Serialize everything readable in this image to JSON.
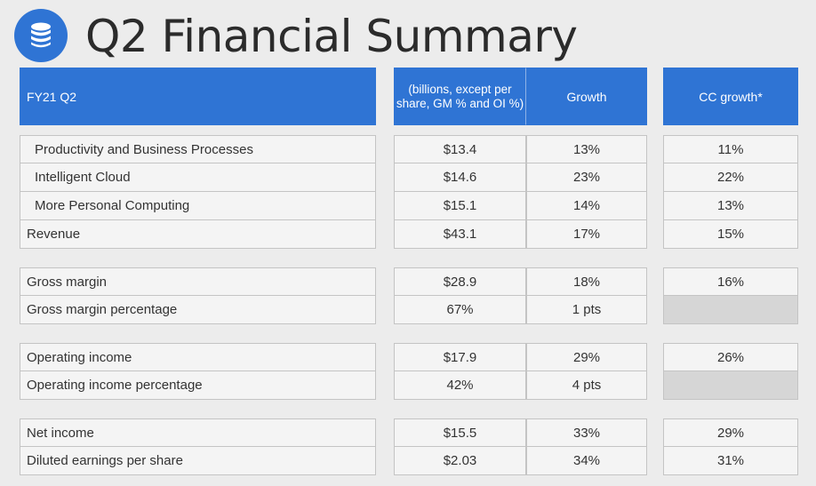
{
  "title": "Q2 Financial Summary",
  "icon": "database-icon",
  "colors": {
    "header_bg": "#2f74d4",
    "na_cell": "#d6d6d6"
  },
  "header": {
    "period": "FY21 Q2",
    "units": "(billions, except per share, GM % and OI %)",
    "growth": "Growth",
    "cc_growth": "CC growth*"
  },
  "groups": [
    {
      "rows": [
        {
          "label": "Productivity and Business Processes",
          "indent": true,
          "value": "$13.4",
          "growth": "13%",
          "cc_growth": "11%"
        },
        {
          "label": "Intelligent Cloud",
          "indent": true,
          "value": "$14.6",
          "growth": "23%",
          "cc_growth": "22%"
        },
        {
          "label": "More Personal Computing",
          "indent": true,
          "value": "$15.1",
          "growth": "14%",
          "cc_growth": "13%"
        },
        {
          "label": "Revenue",
          "indent": false,
          "value": "$43.1",
          "growth": "17%",
          "cc_growth": "15%"
        }
      ]
    },
    {
      "rows": [
        {
          "label": "Gross margin",
          "indent": false,
          "value": "$28.9",
          "growth": "18%",
          "cc_growth": "16%"
        },
        {
          "label": "Gross margin percentage",
          "indent": false,
          "value": "67%",
          "growth": "1 pts",
          "cc_growth": ""
        }
      ]
    },
    {
      "rows": [
        {
          "label": "Operating income",
          "indent": false,
          "value": "$17.9",
          "growth": "29%",
          "cc_growth": "26%"
        },
        {
          "label": "Operating income percentage",
          "indent": false,
          "value": "42%",
          "growth": "4 pts",
          "cc_growth": ""
        }
      ]
    },
    {
      "rows": [
        {
          "label": "Net income",
          "indent": false,
          "value": "$15.5",
          "growth": "33%",
          "cc_growth": "29%"
        },
        {
          "label": "Diluted earnings per share",
          "indent": false,
          "value": "$2.03",
          "growth": "34%",
          "cc_growth": "31%"
        }
      ]
    }
  ]
}
